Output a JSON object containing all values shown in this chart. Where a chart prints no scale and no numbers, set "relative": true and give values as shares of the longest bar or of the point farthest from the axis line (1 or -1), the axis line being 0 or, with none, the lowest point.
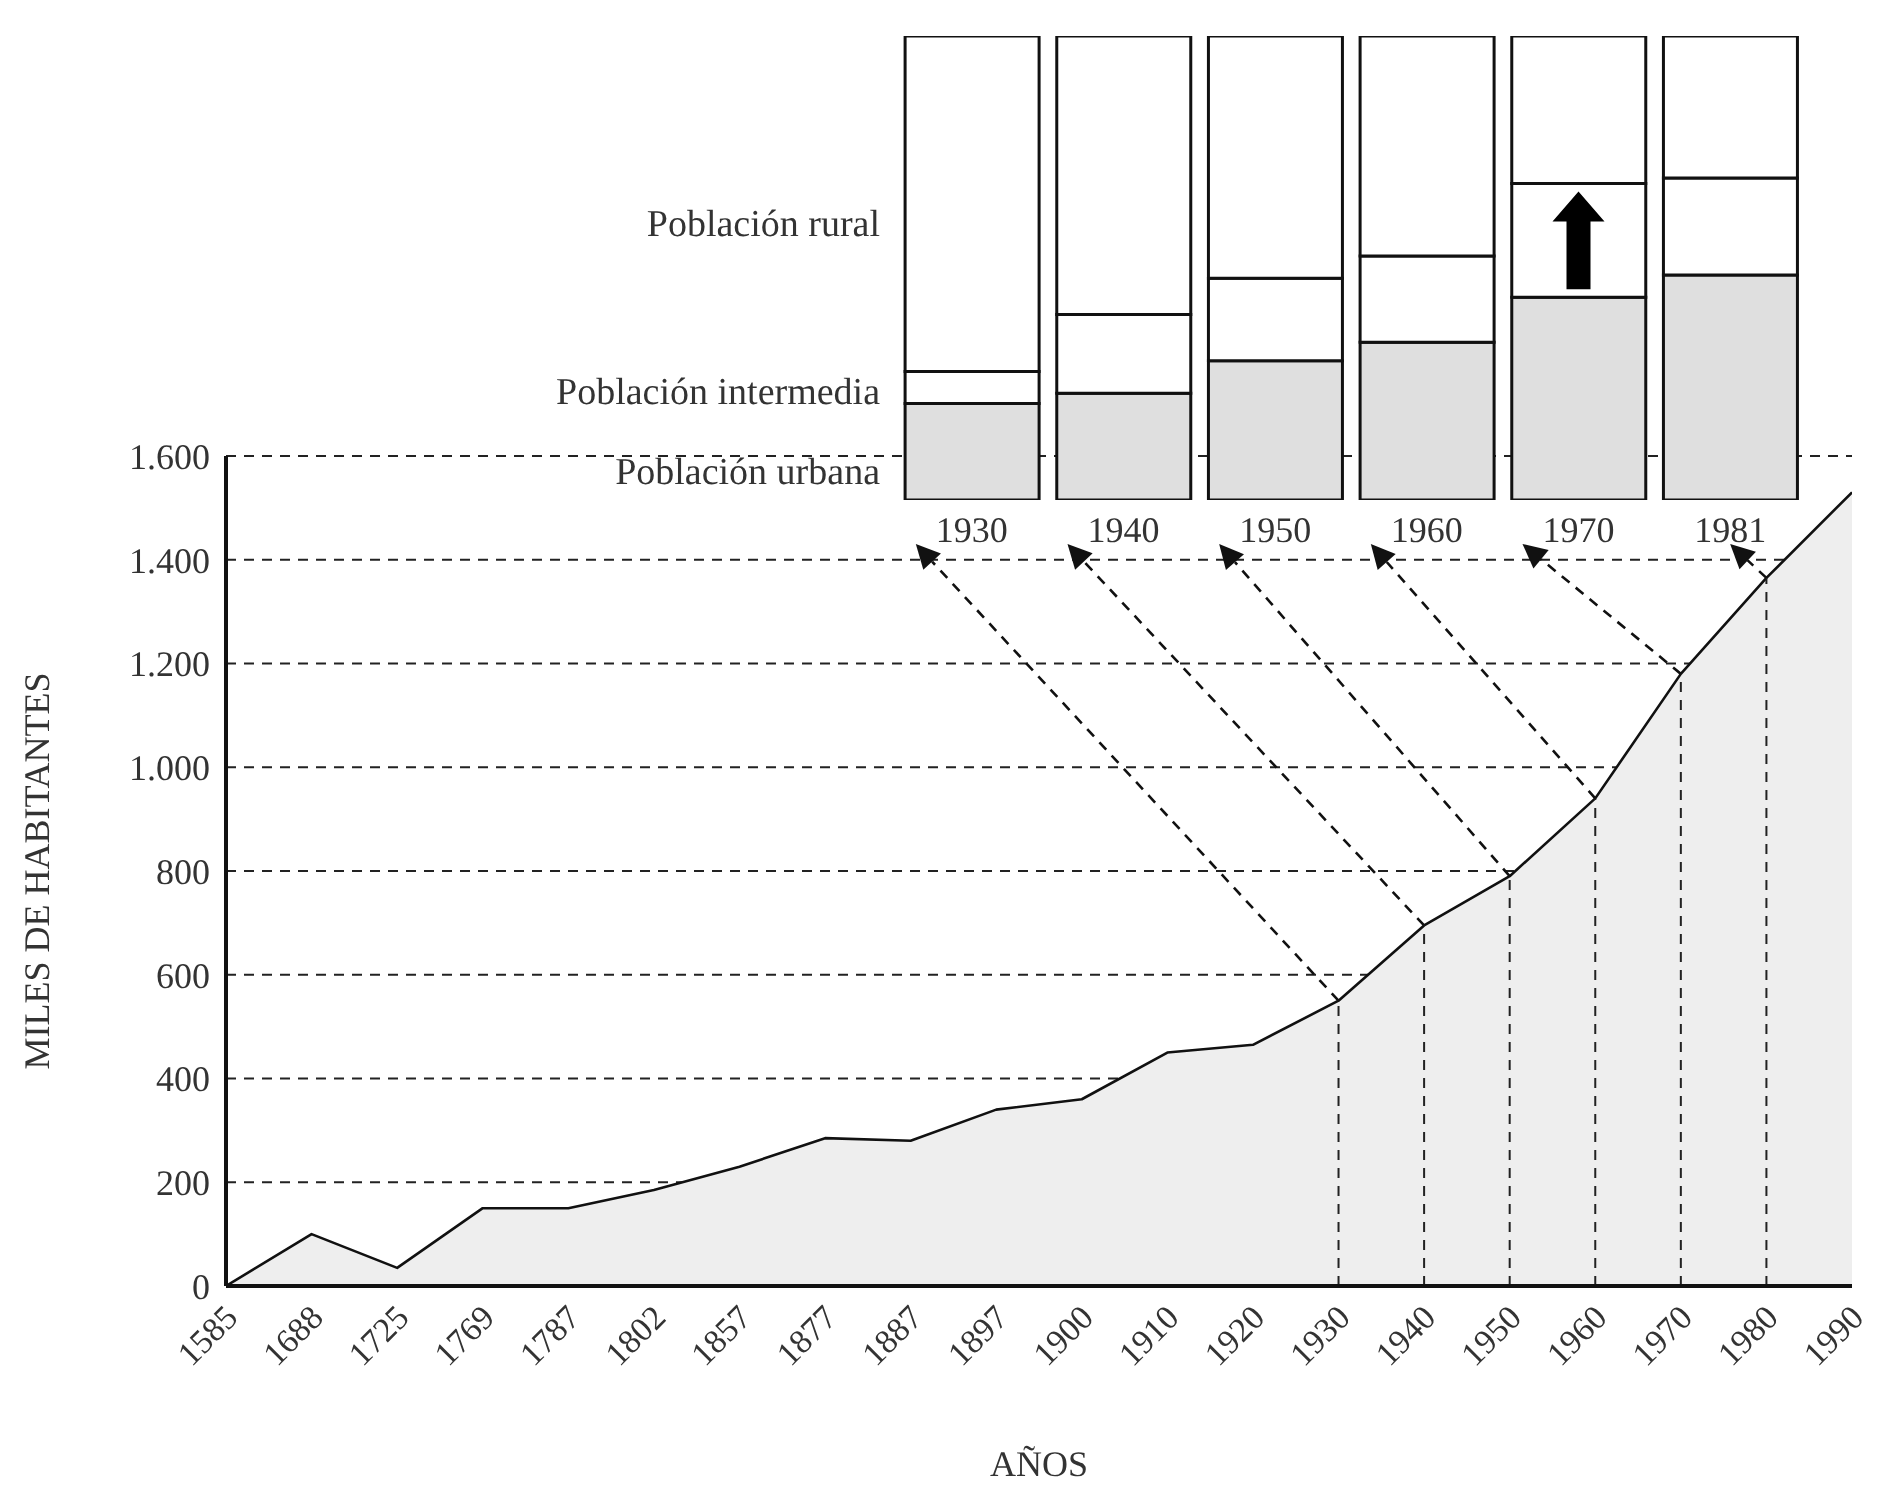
{
  "chart_data": [
    {
      "type": "area",
      "xlabel": "AÑOS",
      "ylabel": "MILES DE HABITANTES",
      "categories": [
        "1585",
        "1688",
        "1725",
        "1769",
        "1787",
        "1802",
        "1857",
        "1877",
        "1887",
        "1897",
        "1900",
        "1910",
        "1920",
        "1930",
        "1940",
        "1950",
        "1960",
        "1970",
        "1980",
        "1990"
      ],
      "series": [
        {
          "color": "#eeeeee",
          "values": [
            0,
            100,
            35,
            150,
            150,
            185,
            230,
            285,
            280,
            340,
            360,
            450,
            465,
            550,
            695,
            790,
            940,
            1180,
            1365,
            1530
          ]
        }
      ],
      "ylim": [
        0,
        1600
      ],
      "yticks": [
        0,
        200,
        400,
        600,
        800,
        {
          "value": 1000,
          "label": "1.000"
        },
        {
          "value": 1200,
          "label": "1.200"
        },
        {
          "value": 1400,
          "label": "1.400"
        },
        {
          "value": 1600,
          "label": "1.600"
        }
      ],
      "grid": "y",
      "ref_lines": [
        {
          "axis": "x",
          "value": "1930",
          "line_style": "dashed"
        },
        {
          "axis": "x",
          "value": "1940",
          "line_style": "dashed"
        },
        {
          "axis": "x",
          "value": "1950",
          "line_style": "dashed"
        },
        {
          "axis": "x",
          "value": "1960",
          "line_style": "dashed"
        },
        {
          "axis": "x",
          "value": "1970",
          "line_style": "dashed"
        },
        {
          "axis": "x",
          "value": "1980",
          "line_style": "dashed"
        }
      ]
    },
    {
      "type": "bar",
      "stacked": true,
      "relative": true,
      "categories": [
        "1930",
        "1940",
        "1950",
        "1960",
        "1970",
        "1981"
      ],
      "series": [
        {
          "name": "Población urbana",
          "color": "#dfdfdf",
          "values": [
            0.208,
            0.23,
            0.3,
            0.34,
            0.437,
            0.485
          ]
        },
        {
          "name": "Población intermedia",
          "color": "#ffffff",
          "values": [
            0.069,
            0.17,
            0.178,
            0.186,
            0.245,
            0.209
          ]
        },
        {
          "name": "Población rural",
          "color": "#ffffff",
          "values": [
            0.723,
            0.6,
            0.522,
            0.474,
            0.318,
            0.306
          ]
        }
      ]
    }
  ]
}
